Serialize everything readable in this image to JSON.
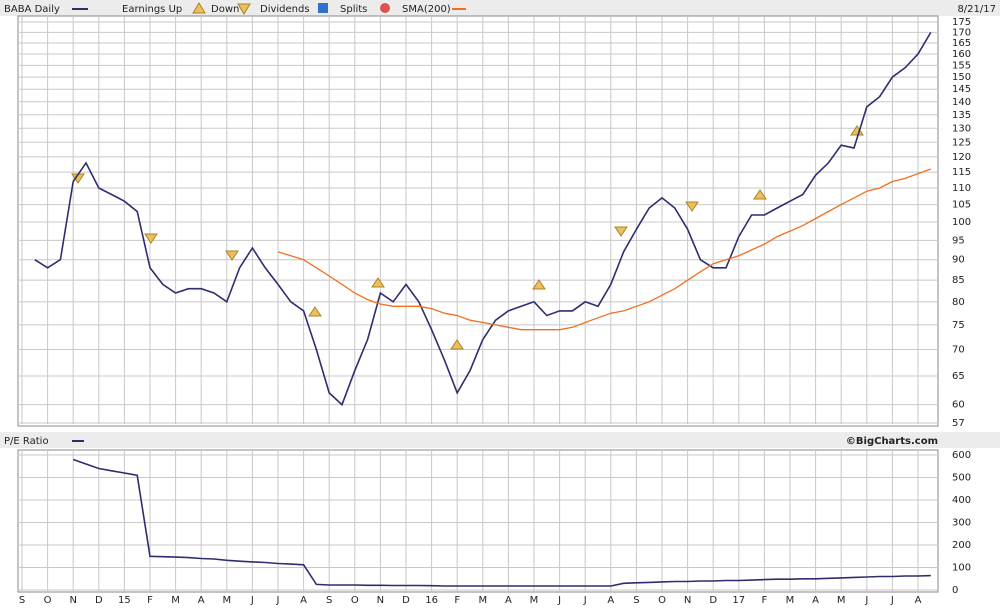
{
  "chart_data": [
    {
      "type": "line",
      "date": "8/21/17",
      "log_scale": true,
      "grid": true,
      "legend_items": [
        "Earnings Up",
        "Down",
        "Dividends",
        "Splits"
      ],
      "ylim": [
        57,
        175
      ],
      "yticks": [
        57,
        60,
        65,
        70,
        75,
        80,
        85,
        90,
        95,
        100,
        105,
        110,
        115,
        120,
        125,
        130,
        135,
        140,
        145,
        150,
        155,
        160,
        165,
        170,
        175
      ],
      "series": [
        {
          "name": "BABA Daily",
          "color": "#2e2e6e",
          "values": [
            null,
            90,
            88,
            90,
            112,
            118,
            110,
            108,
            106,
            103,
            88,
            84,
            82,
            83,
            83,
            82,
            80,
            88,
            93,
            88,
            84,
            80,
            78,
            70,
            62,
            60,
            66,
            72,
            82,
            80,
            84,
            80,
            74,
            68,
            62,
            66,
            72,
            76,
            78,
            79,
            80,
            77,
            78,
            78,
            80,
            79,
            84,
            92,
            98,
            104,
            107,
            104,
            98,
            90,
            88,
            88,
            96,
            102,
            102,
            104,
            106,
            108,
            114,
            118,
            124,
            123,
            138,
            142,
            150,
            154,
            160,
            170
          ]
        },
        {
          "name": "SMA(200)",
          "color": "#f07020",
          "values": [
            null,
            null,
            null,
            null,
            null,
            null,
            null,
            null,
            null,
            null,
            null,
            null,
            null,
            null,
            null,
            null,
            null,
            null,
            null,
            null,
            92,
            91,
            90,
            88,
            86,
            84,
            82,
            80.5,
            79.5,
            79,
            79,
            79,
            78.5,
            77.5,
            77,
            76,
            75.5,
            75,
            74.5,
            74,
            74,
            74,
            74,
            74.5,
            75.5,
            76.5,
            77.5,
            78,
            79,
            80,
            81.5,
            83,
            85,
            87,
            89,
            90,
            91,
            92.5,
            94,
            96,
            97.5,
            99,
            101,
            103,
            105,
            107,
            109,
            110,
            112,
            113,
            114.5,
            116
          ]
        }
      ]
    },
    {
      "type": "line",
      "source": "©BigCharts.com",
      "grid": true,
      "categories": [
        "S",
        null,
        "O",
        null,
        "N",
        null,
        "D",
        null,
        "15",
        null,
        "F",
        null,
        "M",
        null,
        "A",
        null,
        "M",
        null,
        "J",
        null,
        "J",
        null,
        "A",
        null,
        "S",
        null,
        "O",
        null,
        "N",
        null,
        "D",
        null,
        "16",
        null,
        "F",
        null,
        "M",
        null,
        "A",
        null,
        "M",
        null,
        "J",
        null,
        "J",
        null,
        "A",
        null,
        "S",
        null,
        "O",
        null,
        "N",
        null,
        "D",
        null,
        "17",
        null,
        "F",
        null,
        "M",
        null,
        "A",
        null,
        "M",
        null,
        "J",
        null,
        "J",
        null,
        "A",
        null
      ],
      "ylim": [
        0,
        600
      ],
      "yticks": [
        0,
        100,
        200,
        300,
        400,
        500,
        600
      ],
      "series": [
        {
          "name": "P/E Ratio",
          "color": "#2e2e6e",
          "values": [
            null,
            null,
            null,
            null,
            580,
            560,
            540,
            530,
            520,
            510,
            150,
            148,
            146,
            144,
            140,
            138,
            132,
            128,
            125,
            122,
            118,
            115,
            112,
            25,
            22,
            22,
            22,
            21,
            21,
            20,
            20,
            20,
            19,
            18,
            18,
            18,
            18,
            18,
            18,
            18,
            18,
            18,
            18,
            18,
            18,
            18,
            18,
            30,
            32,
            34,
            36,
            38,
            38,
            40,
            40,
            42,
            42,
            44,
            46,
            48,
            48,
            50,
            50,
            52,
            54,
            56,
            58,
            60,
            60,
            62,
            62,
            64
          ]
        }
      ]
    }
  ]
}
